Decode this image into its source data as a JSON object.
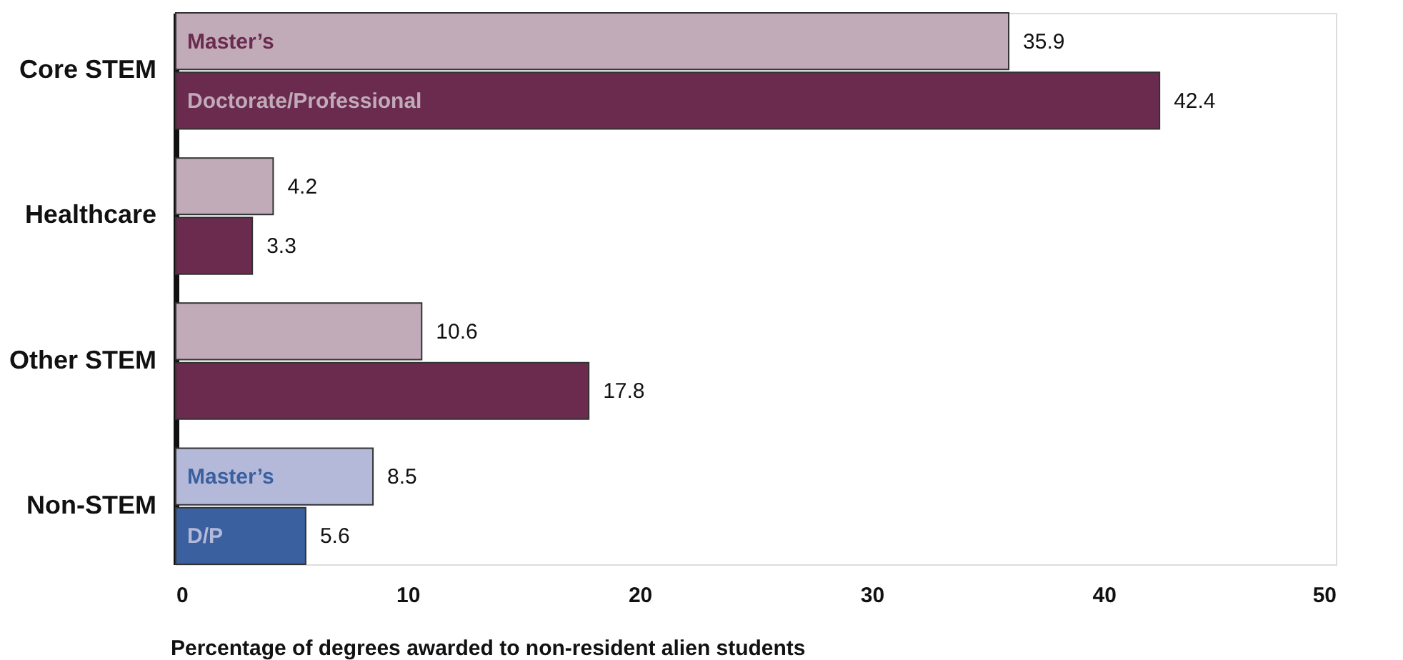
{
  "chart_data": {
    "type": "bar",
    "orientation": "horizontal",
    "xlabel": "Percentage of degrees awarded to non-resident alien students",
    "categories": [
      "Core STEM",
      "Healthcare",
      "Other STEM",
      "Non-STEM"
    ],
    "series": [
      {
        "name": "Master’s",
        "colors": [
          "#c1abb9",
          "#c1abb9",
          "#c1abb9",
          "#b5b9d9"
        ],
        "values": [
          35.9,
          4.2,
          10.6,
          8.5
        ]
      },
      {
        "name": "Doctorate/Professional",
        "colors": [
          "#6b2b4f",
          "#6b2b4f",
          "#6b2b4f",
          "#3a60a0"
        ],
        "values": [
          42.4,
          3.3,
          17.8,
          5.6
        ]
      }
    ],
    "annotations": [
      {
        "text": "Master’s",
        "x": 0,
        "y": "Non-STEM"
      },
      {
        "text": "D/P",
        "x": 0,
        "y": "Non-STEM"
      }
    ],
    "xlim": [
      0,
      50
    ],
    "xticks": [
      0,
      10,
      20,
      30,
      40,
      50
    ],
    "data_labels": true,
    "grid": false
  }
}
